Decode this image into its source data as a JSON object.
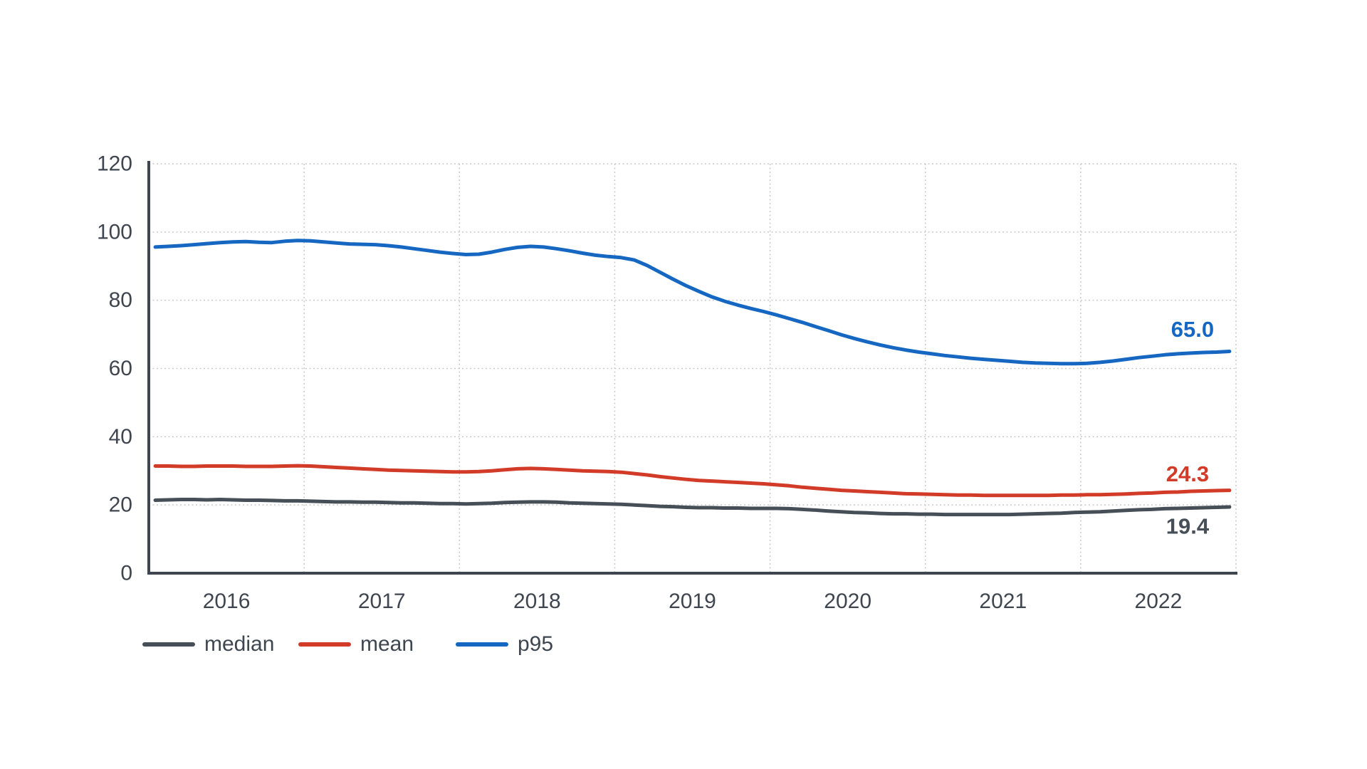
{
  "chart_data": {
    "type": "line",
    "title": "",
    "background": "#ffffff",
    "axis_color": "#3F4650",
    "text_color": "#3F4650",
    "grid": {
      "color": "#c9c9c9",
      "style": "dotted",
      "visible": true
    },
    "x_axis": {
      "domain": [
        2016,
        2023
      ],
      "tick_labels": [
        "2016",
        "2017",
        "2018",
        "2019",
        "2020",
        "2021",
        "2022"
      ],
      "tick_positions": [
        2016.5,
        2017.5,
        2018.5,
        2019.5,
        2020.5,
        2021.5,
        2022.5
      ],
      "gridline_positions": [
        2017,
        2018,
        2019,
        2020,
        2021,
        2022,
        2023
      ]
    },
    "y_axis": {
      "domain": [
        0,
        120
      ],
      "ticks": [
        0,
        20,
        40,
        60,
        80,
        100,
        120
      ]
    },
    "sampling": {
      "unit": "month",
      "start": "2016-01",
      "end": "2022-12",
      "points_per_year": 12
    },
    "legend": {
      "position": "bottom-left",
      "entries": [
        "median",
        "mean",
        "p95"
      ]
    },
    "series": [
      {
        "name": "median",
        "color": "#464E57",
        "end_label": "19.4",
        "end_label_offset": [
          -59,
          27
        ],
        "values": [
          21.4,
          21.5,
          21.6,
          21.6,
          21.5,
          21.6,
          21.5,
          21.4,
          21.4,
          21.3,
          21.2,
          21.2,
          21.1,
          21.0,
          20.9,
          20.9,
          20.8,
          20.8,
          20.7,
          20.6,
          20.6,
          20.5,
          20.4,
          20.4,
          20.3,
          20.4,
          20.5,
          20.7,
          20.8,
          20.9,
          20.9,
          20.8,
          20.6,
          20.5,
          20.4,
          20.3,
          20.2,
          20.0,
          19.8,
          19.6,
          19.5,
          19.3,
          19.2,
          19.2,
          19.1,
          19.1,
          19.0,
          19.0,
          19.0,
          18.9,
          18.7,
          18.5,
          18.2,
          18.0,
          17.8,
          17.7,
          17.5,
          17.4,
          17.4,
          17.3,
          17.3,
          17.2,
          17.2,
          17.2,
          17.2,
          17.2,
          17.2,
          17.3,
          17.4,
          17.5,
          17.6,
          17.8,
          17.9,
          18.0,
          18.2,
          18.4,
          18.6,
          18.7,
          18.9,
          19.0,
          19.1,
          19.2,
          19.3,
          19.4
        ]
      },
      {
        "name": "mean",
        "color": "#D13B27",
        "end_label": "24.3",
        "end_label_offset": [
          -59,
          -23
        ],
        "values": [
          31.4,
          31.4,
          31.3,
          31.3,
          31.4,
          31.4,
          31.4,
          31.3,
          31.3,
          31.3,
          31.4,
          31.5,
          31.4,
          31.2,
          31.0,
          30.8,
          30.6,
          30.4,
          30.2,
          30.1,
          30.0,
          29.9,
          29.8,
          29.7,
          29.7,
          29.8,
          30.0,
          30.3,
          30.6,
          30.7,
          30.6,
          30.4,
          30.2,
          30.0,
          29.9,
          29.8,
          29.6,
          29.2,
          28.8,
          28.3,
          27.9,
          27.5,
          27.2,
          27.0,
          26.8,
          26.6,
          26.4,
          26.2,
          25.9,
          25.6,
          25.2,
          24.9,
          24.6,
          24.3,
          24.1,
          23.9,
          23.7,
          23.5,
          23.3,
          23.2,
          23.1,
          23.0,
          22.9,
          22.9,
          22.8,
          22.8,
          22.8,
          22.8,
          22.8,
          22.8,
          22.9,
          22.9,
          23.0,
          23.0,
          23.1,
          23.2,
          23.4,
          23.5,
          23.7,
          23.8,
          24.0,
          24.1,
          24.2,
          24.3
        ]
      },
      {
        "name": "p95",
        "color": "#1667C2",
        "end_label": "65.0",
        "end_label_offset": [
          -52,
          -31
        ],
        "values": [
          95.6,
          95.8,
          96.0,
          96.3,
          96.6,
          96.9,
          97.1,
          97.2,
          97.0,
          96.9,
          97.3,
          97.5,
          97.4,
          97.1,
          96.8,
          96.5,
          96.4,
          96.3,
          96.0,
          95.6,
          95.1,
          94.6,
          94.1,
          93.7,
          93.4,
          93.5,
          94.1,
          94.9,
          95.5,
          95.8,
          95.6,
          95.1,
          94.5,
          93.8,
          93.2,
          92.8,
          92.5,
          91.8,
          90.2,
          88.2,
          86.2,
          84.3,
          82.6,
          81.0,
          79.7,
          78.6,
          77.6,
          76.7,
          75.7,
          74.6,
          73.5,
          72.3,
          71.1,
          69.9,
          68.8,
          67.8,
          66.9,
          66.1,
          65.4,
          64.8,
          64.3,
          63.8,
          63.4,
          63.0,
          62.7,
          62.4,
          62.1,
          61.8,
          61.6,
          61.5,
          61.4,
          61.4,
          61.5,
          61.8,
          62.2,
          62.7,
          63.2,
          63.6,
          64.0,
          64.3,
          64.5,
          64.7,
          64.8,
          65.0
        ]
      }
    ]
  }
}
